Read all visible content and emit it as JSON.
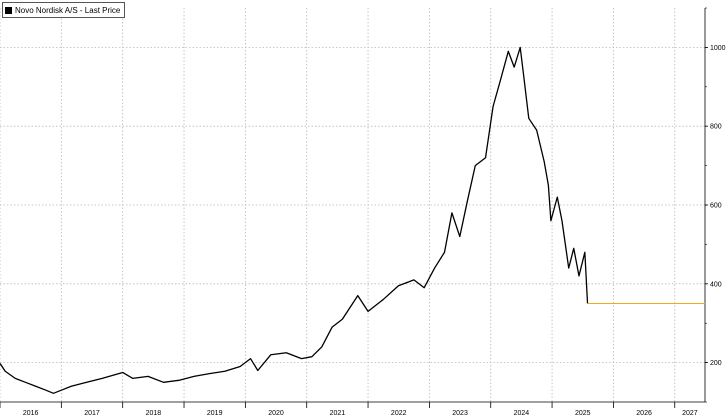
{
  "chart_data": {
    "type": "line",
    "title": "",
    "xlabel": "",
    "ylabel": "",
    "x_ticks": [
      "2016",
      "2017",
      "2018",
      "2019",
      "2020",
      "2021",
      "2022",
      "2023",
      "2024",
      "2025",
      "2026",
      "2027"
    ],
    "y_ticks": [
      "200",
      "400",
      "600",
      "800",
      "1000"
    ],
    "ylim": [
      100,
      1100
    ],
    "xlim": [
      "2016-01-01",
      "2027-06-30"
    ],
    "grid": true,
    "legend_position": "top-left",
    "series": [
      {
        "name": "Novo Nordisk A/S - Last Price",
        "color": "#000000",
        "points": [
          [
            "2016-01-01",
            198
          ],
          [
            "2016-02-01",
            178
          ],
          [
            "2016-04-01",
            160
          ],
          [
            "2016-06-01",
            150
          ],
          [
            "2016-08-01",
            140
          ],
          [
            "2016-10-01",
            130
          ],
          [
            "2016-11-15",
            122
          ],
          [
            "2017-01-01",
            130
          ],
          [
            "2017-03-01",
            140
          ],
          [
            "2017-06-01",
            150
          ],
          [
            "2017-09-01",
            160
          ],
          [
            "2018-01-01",
            175
          ],
          [
            "2018-03-01",
            160
          ],
          [
            "2018-06-01",
            165
          ],
          [
            "2018-09-01",
            150
          ],
          [
            "2018-12-01",
            155
          ],
          [
            "2019-03-01",
            165
          ],
          [
            "2019-06-01",
            172
          ],
          [
            "2019-09-01",
            178
          ],
          [
            "2019-12-01",
            190
          ],
          [
            "2020-02-01",
            210
          ],
          [
            "2020-03-15",
            180
          ],
          [
            "2020-06-01",
            220
          ],
          [
            "2020-09-01",
            225
          ],
          [
            "2020-12-01",
            210
          ],
          [
            "2021-02-01",
            215
          ],
          [
            "2021-04-01",
            240
          ],
          [
            "2021-06-01",
            290
          ],
          [
            "2021-08-01",
            310
          ],
          [
            "2021-11-01",
            370
          ],
          [
            "2022-01-01",
            330
          ],
          [
            "2022-04-01",
            360
          ],
          [
            "2022-07-01",
            395
          ],
          [
            "2022-10-01",
            410
          ],
          [
            "2022-12-01",
            390
          ],
          [
            "2023-02-01",
            440
          ],
          [
            "2023-04-01",
            480
          ],
          [
            "2023-05-15",
            580
          ],
          [
            "2023-07-01",
            520
          ],
          [
            "2023-08-15",
            610
          ],
          [
            "2023-10-01",
            700
          ],
          [
            "2023-12-01",
            720
          ],
          [
            "2024-01-15",
            850
          ],
          [
            "2024-03-01",
            920
          ],
          [
            "2024-04-15",
            990
          ],
          [
            "2024-05-20",
            950
          ],
          [
            "2024-06-25",
            1000
          ],
          [
            "2024-07-15",
            930
          ],
          [
            "2024-08-15",
            820
          ],
          [
            "2024-10-01",
            790
          ],
          [
            "2024-11-15",
            710
          ],
          [
            "2024-12-10",
            650
          ],
          [
            "2024-12-25",
            560
          ],
          [
            "2025-02-01",
            620
          ],
          [
            "2025-03-01",
            560
          ],
          [
            "2025-04-10",
            440
          ],
          [
            "2025-05-10",
            490
          ],
          [
            "2025-06-10",
            420
          ],
          [
            "2025-07-15",
            480
          ],
          [
            "2025-07-31",
            350
          ]
        ]
      },
      {
        "name": "",
        "color": "#f5a623",
        "points": [
          [
            "2025-07-31",
            350
          ],
          [
            "2027-06-30",
            350
          ]
        ]
      }
    ]
  }
}
